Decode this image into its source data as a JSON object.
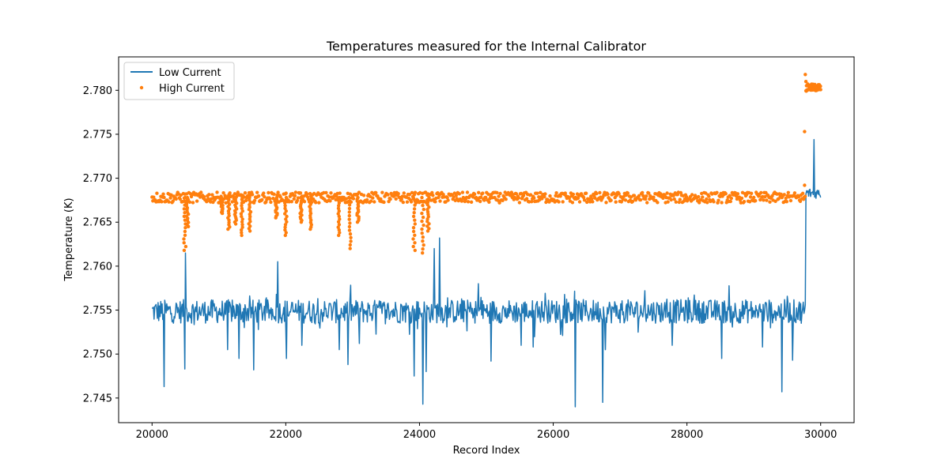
{
  "chart_data": {
    "type": "line",
    "title": "Temperatures measured for the Internal Calibrator",
    "xlabel": "Record Index",
    "ylabel": "Temperature (K)",
    "xlim": [
      19500,
      30500
    ],
    "ylim": [
      2.7422,
      2.7838
    ],
    "xticks": [
      20000,
      22000,
      24000,
      26000,
      28000,
      30000
    ],
    "yticks": [
      2.745,
      2.75,
      2.755,
      2.76,
      2.765,
      2.77,
      2.775,
      2.78
    ],
    "ytick_labels": [
      "2.745",
      "2.750",
      "2.755",
      "2.760",
      "2.765",
      "2.770",
      "2.775",
      "2.780"
    ],
    "grid": false,
    "legend": "top-left",
    "series": [
      {
        "name": "Low Current",
        "style": "line",
        "color": "#1f77b4",
        "baseline": 2.7548,
        "band": [
          2.7535,
          2.7562
        ],
        "spikes": [
          [
            20180,
            2.7463
          ],
          [
            20490,
            2.7483
          ],
          [
            20500,
            2.7615
          ],
          [
            21130,
            2.7505
          ],
          [
            21300,
            2.7495
          ],
          [
            21520,
            2.7482
          ],
          [
            21880,
            2.7605
          ],
          [
            22010,
            2.7495
          ],
          [
            22240,
            2.751
          ],
          [
            22800,
            2.7505
          ],
          [
            22930,
            2.7488
          ],
          [
            23100,
            2.7512
          ],
          [
            23920,
            2.7475
          ],
          [
            24050,
            2.7443
          ],
          [
            24100,
            2.748
          ],
          [
            24220,
            2.762
          ],
          [
            24300,
            2.7632
          ],
          [
            24880,
            2.758
          ],
          [
            25070,
            2.7492
          ],
          [
            25520,
            2.751
          ],
          [
            25700,
            2.7508
          ],
          [
            26330,
            2.744
          ],
          [
            26740,
            2.7445
          ],
          [
            26780,
            2.7505
          ],
          [
            27780,
            2.751
          ],
          [
            28520,
            2.7495
          ],
          [
            29130,
            2.7508
          ],
          [
            29420,
            2.7457
          ],
          [
            29580,
            2.7493
          ]
        ],
        "jump": [
          29780,
          2.7682
        ],
        "end_peak": [
          29900,
          2.7744
        ],
        "end_value": 2.7683,
        "end_x": 30000
      },
      {
        "name": "High Current",
        "style": "scatter",
        "color": "#ff7f0e",
        "baseline": 2.7678,
        "band": [
          2.7672,
          2.7684
        ],
        "dips": [
          [
            20490,
            2.7618
          ],
          [
            20530,
            2.7645
          ],
          [
            21050,
            2.766
          ],
          [
            21150,
            2.7642
          ],
          [
            21250,
            2.7648
          ],
          [
            21340,
            2.7635
          ],
          [
            21460,
            2.764
          ],
          [
            21860,
            2.7655
          ],
          [
            22000,
            2.7635
          ],
          [
            22230,
            2.765
          ],
          [
            22370,
            2.7642
          ],
          [
            22790,
            2.7635
          ],
          [
            22960,
            2.762
          ],
          [
            23080,
            2.765
          ],
          [
            23920,
            2.7618
          ],
          [
            24050,
            2.7615
          ],
          [
            24130,
            2.764
          ]
        ],
        "jump_x": 29780,
        "end_level": 2.7803,
        "end_outliers": [
          [
            29760,
            2.7753
          ],
          [
            29770,
            2.7818
          ],
          [
            29780,
            2.781
          ],
          [
            29760,
            2.7692
          ]
        ],
        "end_x": 30000
      }
    ]
  }
}
